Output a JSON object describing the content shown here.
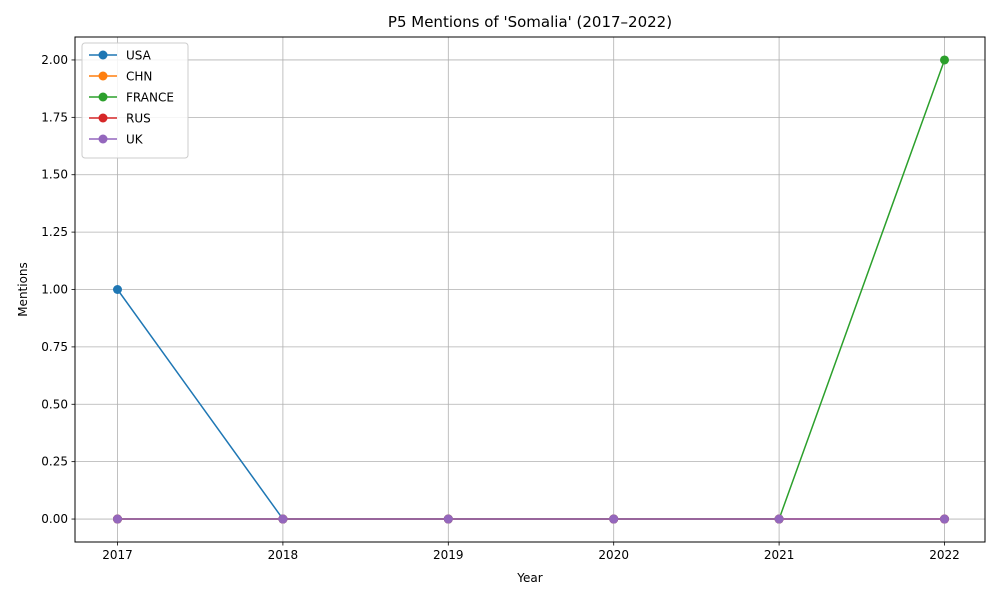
{
  "chart_data": {
    "type": "line",
    "title": "P5 Mentions of 'Somalia' (2017–2022)",
    "xlabel": "Year",
    "ylabel": "Mentions",
    "x": [
      2017,
      2018,
      2019,
      2020,
      2021,
      2022
    ],
    "x_tick_labels": [
      "2017",
      "2018",
      "2019",
      "2020",
      "2021",
      "2022"
    ],
    "ylim": [
      -0.1,
      2.1
    ],
    "y_ticks": [
      0.0,
      0.25,
      0.5,
      0.75,
      1.0,
      1.25,
      1.5,
      1.75,
      2.0
    ],
    "y_tick_labels": [
      "0.00",
      "0.25",
      "0.50",
      "0.75",
      "1.00",
      "1.25",
      "1.50",
      "1.75",
      "2.00"
    ],
    "grid": true,
    "legend_position": "top-left",
    "markers": "circle",
    "series": [
      {
        "name": "USA",
        "color": "#1f77b4",
        "values": [
          1,
          0,
          0,
          0,
          0,
          0
        ]
      },
      {
        "name": "CHN",
        "color": "#ff7f0e",
        "values": [
          0,
          0,
          0,
          0,
          0,
          0
        ]
      },
      {
        "name": "FRANCE",
        "color": "#2ca02c",
        "values": [
          0,
          0,
          0,
          0,
          0,
          2
        ]
      },
      {
        "name": "RUS",
        "color": "#d62728",
        "values": [
          0,
          0,
          0,
          0,
          0,
          0
        ]
      },
      {
        "name": "UK",
        "color": "#9467bd",
        "values": [
          0,
          0,
          0,
          0,
          0,
          0
        ]
      }
    ]
  }
}
